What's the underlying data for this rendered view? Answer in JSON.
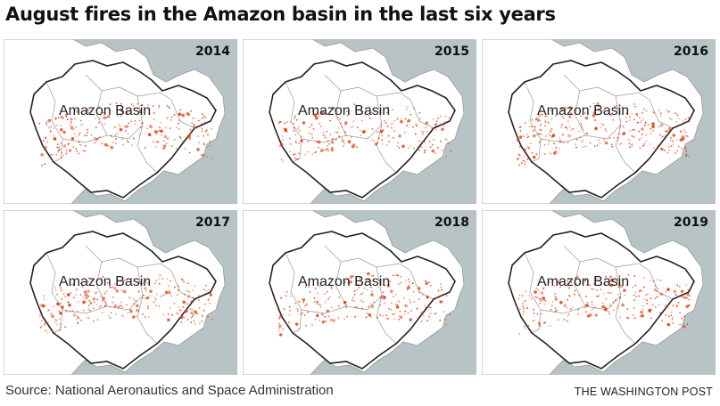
{
  "title": "August fires in the Amazon basin in the last six years",
  "region_label": "Amazon Basin",
  "panels": [
    {
      "year": "2014"
    },
    {
      "year": "2015"
    },
    {
      "year": "2016"
    },
    {
      "year": "2017"
    },
    {
      "year": "2018"
    },
    {
      "year": "2019"
    }
  ],
  "source": "Source: National Aeronautics and Space Administration",
  "credit": "THE WASHINGTON POST",
  "colors": {
    "ocean": "#b8c3c5",
    "land": "#ffffff",
    "fire": "#d9481c",
    "border": "#999999"
  }
}
